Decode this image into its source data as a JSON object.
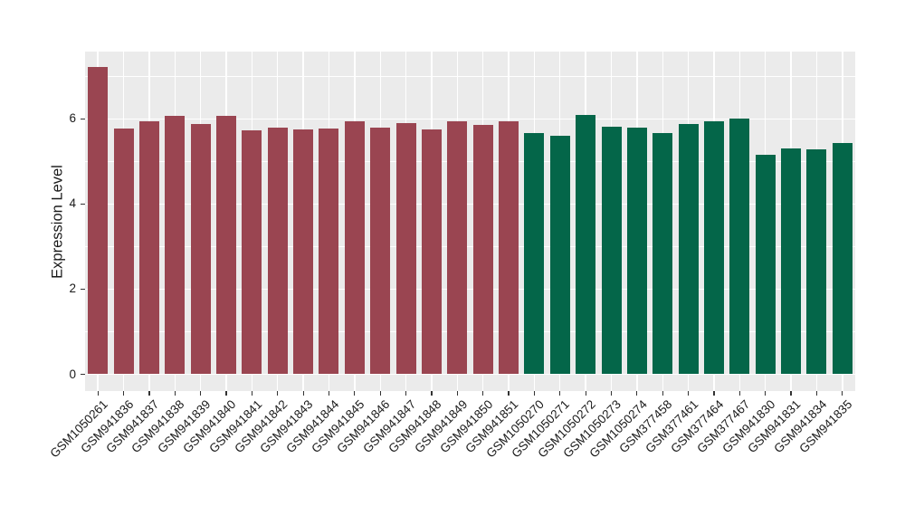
{
  "figure": {
    "background_color": "#FFFFFF",
    "panel_background_color": "#EBEBEB",
    "grid_color": "#FFFFFF",
    "axis_text_color": "#1A1A1A",
    "tick_mark_color": "#333333"
  },
  "chart_data": {
    "type": "bar",
    "title": "",
    "xlabel": "",
    "ylabel": "Expression Level",
    "ylim": [
      -0.39,
      7.58
    ],
    "yticks": [
      0,
      2,
      4,
      6
    ],
    "yticks_minor": [
      1,
      3,
      5,
      7
    ],
    "grid": true,
    "legend_position": "none",
    "x_label_angle": 45,
    "categories": [
      "GSM1050261",
      "GSM941836",
      "GSM941837",
      "GSM941838",
      "GSM941839",
      "GSM941840",
      "GSM941841",
      "GSM941842",
      "GSM941843",
      "GSM941844",
      "GSM941845",
      "GSM941846",
      "GSM941847",
      "GSM941848",
      "GSM941849",
      "GSM941850",
      "GSM941851",
      "GSM1050270",
      "GSM1050271",
      "GSM1050272",
      "GSM1050273",
      "GSM1050274",
      "GSM377458",
      "GSM377461",
      "GSM377464",
      "GSM377467",
      "GSM941830",
      "GSM941831",
      "GSM941834",
      "GSM941835"
    ],
    "values": [
      7.21,
      5.76,
      5.94,
      6.06,
      5.87,
      6.06,
      5.73,
      5.79,
      5.75,
      5.78,
      5.94,
      5.79,
      5.9,
      5.75,
      5.94,
      5.85,
      5.93,
      5.67,
      5.59,
      6.08,
      5.82,
      5.8,
      5.67,
      5.88,
      5.93,
      6.01,
      5.15,
      5.31,
      5.28,
      5.42
    ],
    "groups": [
      "group1",
      "group1",
      "group1",
      "group1",
      "group1",
      "group1",
      "group1",
      "group1",
      "group1",
      "group1",
      "group1",
      "group1",
      "group1",
      "group1",
      "group1",
      "group1",
      "group1",
      "group2",
      "group2",
      "group2",
      "group2",
      "group2",
      "group2",
      "group2",
      "group2",
      "group2",
      "group2",
      "group2",
      "group2",
      "group2"
    ],
    "group_colors": {
      "group1": "#9A4551",
      "group2": "#046649"
    }
  }
}
